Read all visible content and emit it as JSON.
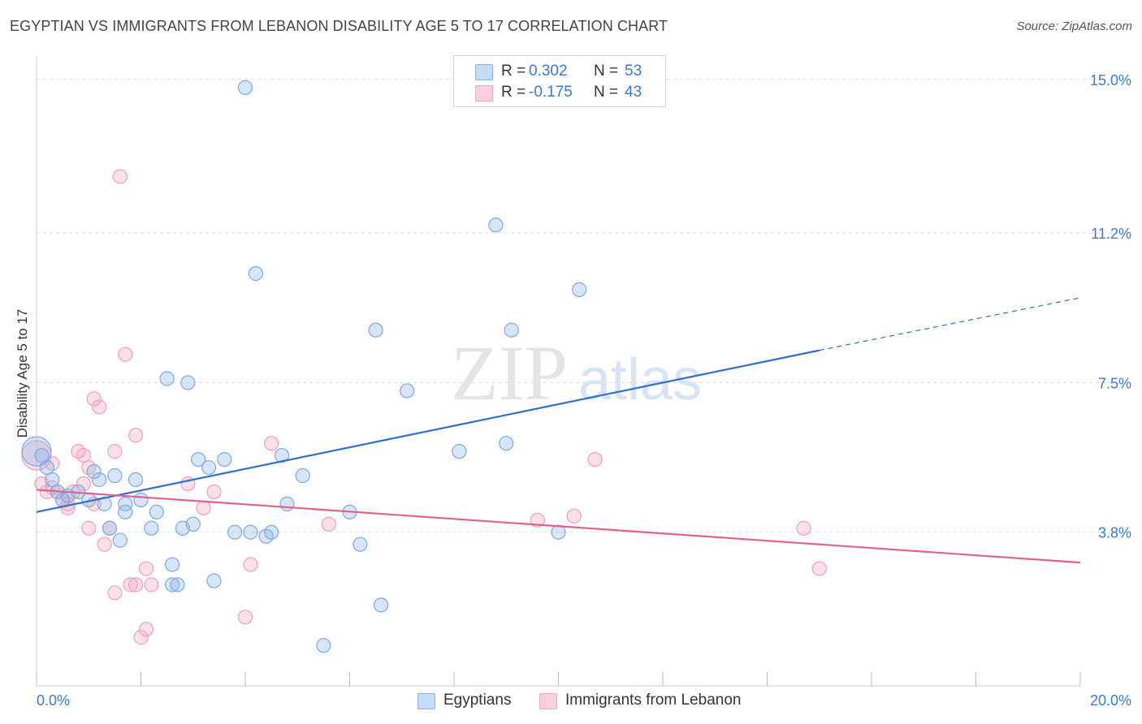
{
  "header": {
    "title": "EGYPTIAN VS IMMIGRANTS FROM LEBANON DISABILITY AGE 5 TO 17 CORRELATION CHART",
    "source": "Source: ZipAtlas.com"
  },
  "legend": {
    "rows": [
      {
        "r_label": "R =",
        "r_value": "0.302",
        "n_label": "N =",
        "n_value": "53"
      },
      {
        "r_label": "R =",
        "r_value": "-0.175",
        "n_label": "N =",
        "n_value": "43"
      }
    ]
  },
  "watermark": {
    "zip": "ZIP",
    "atlas": "atlas"
  },
  "chart_data": {
    "type": "scatter",
    "title": "EGYPTIAN VS IMMIGRANTS FROM LEBANON DISABILITY AGE 5 TO 17 CORRELATION CHART",
    "xlabel": "",
    "ylabel": "Disability Age 5 to 17",
    "xlim": [
      0,
      20
    ],
    "ylim": [
      0,
      15.4
    ],
    "x_tick_labels": [
      "0.0%",
      "20.0%"
    ],
    "y_ticks": [
      3.8,
      7.5,
      11.2,
      15.0
    ],
    "y_tick_labels": [
      "3.8%",
      "7.5%",
      "11.2%",
      "15.0%"
    ],
    "grid": true,
    "legend_position": "top-center",
    "colors": {
      "egyptians": "#8ab4e8",
      "egyptians_line": "#2f6fcf",
      "lebanon": "#f4a6c0",
      "lebanon_line": "#e0628f",
      "axis_text": "#3a7bd5"
    },
    "series": [
      {
        "name": "Egyptians",
        "r": 0.302,
        "n": 53,
        "trend": {
          "x": [
            0,
            15.0
          ],
          "y": [
            4.3,
            8.3
          ],
          "dashed_to": [
            20.0,
            9.6
          ]
        },
        "points": [
          [
            0.1,
            5.7
          ],
          [
            0.2,
            5.4
          ],
          [
            0.3,
            5.1
          ],
          [
            0.4,
            4.8
          ],
          [
            0.6,
            4.7
          ],
          [
            0.5,
            4.6
          ],
          [
            0.8,
            4.8
          ],
          [
            1.0,
            4.6
          ],
          [
            1.1,
            5.3
          ],
          [
            1.2,
            5.1
          ],
          [
            1.3,
            4.5
          ],
          [
            1.4,
            3.9
          ],
          [
            1.5,
            5.2
          ],
          [
            1.6,
            3.6
          ],
          [
            1.7,
            4.5
          ],
          [
            1.7,
            4.3
          ],
          [
            1.9,
            5.1
          ],
          [
            2.0,
            4.6
          ],
          [
            2.2,
            3.9
          ],
          [
            2.3,
            4.3
          ],
          [
            2.5,
            7.6
          ],
          [
            2.6,
            3.0
          ],
          [
            2.6,
            2.5
          ],
          [
            2.8,
            3.9
          ],
          [
            2.9,
            7.5
          ],
          [
            2.7,
            2.5
          ],
          [
            3.0,
            4.0
          ],
          [
            3.1,
            5.6
          ],
          [
            3.3,
            5.4
          ],
          [
            3.4,
            2.6
          ],
          [
            3.6,
            5.6
          ],
          [
            3.8,
            3.8
          ],
          [
            4.0,
            14.8
          ],
          [
            4.1,
            3.8
          ],
          [
            4.2,
            10.2
          ],
          [
            4.4,
            3.7
          ],
          [
            4.5,
            3.8
          ],
          [
            4.7,
            5.7
          ],
          [
            4.8,
            4.5
          ],
          [
            5.1,
            5.2
          ],
          [
            5.5,
            1.0
          ],
          [
            6.0,
            4.3
          ],
          [
            6.2,
            3.5
          ],
          [
            6.5,
            8.8
          ],
          [
            6.6,
            2.0
          ],
          [
            7.1,
            7.3
          ],
          [
            8.1,
            5.8
          ],
          [
            8.8,
            11.4
          ],
          [
            9.0,
            6.0
          ],
          [
            9.1,
            8.8
          ],
          [
            10.0,
            3.8
          ],
          [
            10.4,
            9.8
          ],
          [
            0.0,
            5.8
          ]
        ]
      },
      {
        "name": "Immigrants from Lebanon",
        "r": -0.175,
        "n": 43,
        "trend": {
          "x": [
            0,
            20.0
          ],
          "y": [
            4.85,
            3.05
          ]
        },
        "points": [
          [
            0.1,
            5.0
          ],
          [
            0.2,
            4.8
          ],
          [
            0.3,
            4.9
          ],
          [
            0.4,
            4.8
          ],
          [
            0.5,
            4.6
          ],
          [
            0.6,
            4.5
          ],
          [
            0.7,
            4.8
          ],
          [
            0.8,
            5.8
          ],
          [
            0.9,
            5.7
          ],
          [
            0.9,
            5.0
          ],
          [
            1.0,
            5.4
          ],
          [
            1.0,
            3.9
          ],
          [
            1.1,
            4.5
          ],
          [
            1.1,
            7.1
          ],
          [
            1.2,
            6.9
          ],
          [
            1.3,
            3.5
          ],
          [
            1.4,
            3.9
          ],
          [
            1.5,
            2.3
          ],
          [
            1.5,
            5.8
          ],
          [
            1.6,
            12.6
          ],
          [
            1.7,
            8.2
          ],
          [
            1.8,
            2.5
          ],
          [
            1.9,
            6.2
          ],
          [
            1.9,
            2.5
          ],
          [
            2.0,
            1.2
          ],
          [
            2.1,
            1.4
          ],
          [
            2.1,
            2.9
          ],
          [
            2.2,
            2.5
          ],
          [
            2.9,
            5.0
          ],
          [
            3.2,
            4.4
          ],
          [
            3.4,
            4.8
          ],
          [
            4.0,
            1.7
          ],
          [
            4.1,
            3.0
          ],
          [
            4.5,
            6.0
          ],
          [
            5.6,
            4.0
          ],
          [
            9.6,
            4.1
          ],
          [
            10.3,
            4.2
          ],
          [
            10.7,
            5.6
          ],
          [
            14.7,
            3.9
          ],
          [
            15.0,
            2.9
          ],
          [
            0.0,
            5.7
          ],
          [
            0.3,
            5.5
          ],
          [
            0.6,
            4.4
          ]
        ]
      }
    ]
  },
  "bottom_legend": {
    "items": [
      "Egyptians",
      "Immigrants from Lebanon"
    ]
  }
}
